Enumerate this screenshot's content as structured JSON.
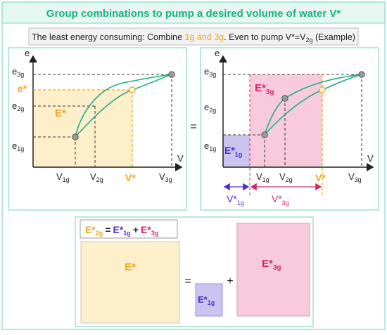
{
  "title": "Group combinations to pump a desired volume of water V*",
  "subtitle_parts": {
    "prefix": "The least energy consuming: Combine ",
    "highlight": "1g and 3g",
    "middle": ". Even to pump V*=V",
    "sub": "2g",
    "suffix": " (Example)"
  },
  "axes": {
    "e": "e",
    "v": "V"
  },
  "left_chart": {
    "y_labels": [
      {
        "main": "e",
        "sub": "3g"
      },
      {
        "main": "e*",
        "sub": ""
      },
      {
        "main": "e",
        "sub": "2g"
      },
      {
        "main": "e",
        "sub": "1g"
      }
    ],
    "x_labels": [
      {
        "main": "V",
        "sub": "1g"
      },
      {
        "main": "V",
        "sub": "2g"
      },
      {
        "main": "V*",
        "sub": ""
      },
      {
        "main": "V",
        "sub": "3g"
      }
    ],
    "region_label": "E*"
  },
  "equals_sign": "=",
  "right_chart": {
    "y_labels": [
      {
        "main": "e",
        "sub": "3g"
      },
      {
        "main": "e",
        "sub": "2g"
      },
      {
        "main": "e",
        "sub": "1g"
      }
    ],
    "x_labels": [
      {
        "main": "V",
        "sub": "1g"
      },
      {
        "main": "V",
        "sub": "2g"
      },
      {
        "main": "V*",
        "sub": ""
      },
      {
        "main": "V",
        "sub": "3g"
      }
    ],
    "region_1g": {
      "main": "E*",
      "sub": "1g"
    },
    "region_3g": {
      "main": "E*",
      "sub": "3g"
    },
    "span_1g": {
      "main": "V*",
      "sub": "1g"
    },
    "span_3g": {
      "main": "V*",
      "sub": "3g"
    }
  },
  "bottom": {
    "equation": {
      "lhs_main": "E*",
      "lhs_sub": "2g",
      "eq": "=",
      "t1_main": "E*",
      "t1_sub": "1g",
      "plus": "+",
      "t2_main": "E*",
      "t2_sub": "3g"
    },
    "box_estar": "E*",
    "eq": "=",
    "box_1g": {
      "main": "E*",
      "sub": "1g"
    },
    "plus": "+",
    "box_3g": {
      "main": "E*",
      "sub": "3g"
    }
  },
  "colors": {
    "teal": "#1fae85",
    "frame": "#9fe3cf",
    "title_bg": "#e6f7f1",
    "orange": "#f0a524",
    "yellow_fill": "#fcefc9",
    "pink_fill": "#f7cbdc",
    "magenta": "#d6276b",
    "purple": "#4a2fcf",
    "purple_fill": "#cbc4f0",
    "gray_marker": "#9b9b9b"
  }
}
